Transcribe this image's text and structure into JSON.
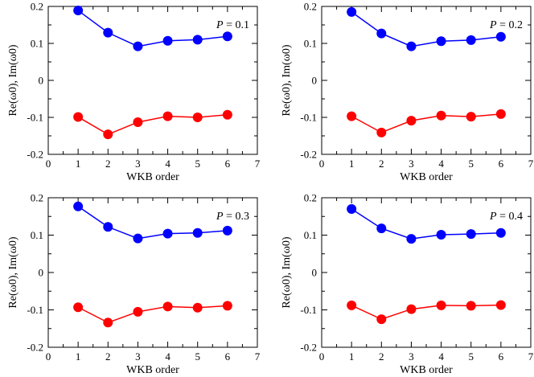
{
  "figure": {
    "description_free": true
  },
  "colors": {
    "series_re": "#0000ff",
    "series_im": "#ff0000",
    "axis": "#000000",
    "background": "#ffffff"
  },
  "chart_data": [
    {
      "type": "line",
      "panel": "top-left",
      "annotation_symbol": "P",
      "annotation_value": "= 0.1",
      "xlabel": "WKB order",
      "ylabel": "Re(ω0), Im(ω0)",
      "xlim": [
        0,
        7
      ],
      "ylim": [
        -0.2,
        0.2
      ],
      "xticks": [
        "0",
        "1",
        "2",
        "3",
        "4",
        "5",
        "6",
        "7"
      ],
      "yticks": [
        "-0.2",
        "-0.1",
        "0",
        "0.1",
        "0.2"
      ],
      "x": [
        1,
        2,
        3,
        4,
        5,
        6
      ],
      "series": [
        {
          "name": "Re(ω0)",
          "color": "#0000ff",
          "values": [
            0.189,
            0.129,
            0.092,
            0.107,
            0.11,
            0.119
          ]
        },
        {
          "name": "Im(ω0)",
          "color": "#ff0000",
          "values": [
            -0.099,
            -0.146,
            -0.113,
            -0.097,
            -0.1,
            -0.093
          ]
        }
      ]
    },
    {
      "type": "line",
      "panel": "top-right",
      "annotation_symbol": "P",
      "annotation_value": "= 0.2",
      "xlabel": "WKB order",
      "ylabel": "Re(ω0), Im(ω0)",
      "xlim": [
        0,
        7
      ],
      "ylim": [
        -0.2,
        0.2
      ],
      "xticks": [
        "0",
        "1",
        "2",
        "3",
        "4",
        "5",
        "6",
        "7"
      ],
      "yticks": [
        "-0.2",
        "-0.1",
        "0",
        "0.1",
        "0.2"
      ],
      "x": [
        1,
        2,
        3,
        4,
        5,
        6
      ],
      "series": [
        {
          "name": "Re(ω0)",
          "color": "#0000ff",
          "values": [
            0.185,
            0.127,
            0.092,
            0.106,
            0.109,
            0.118
          ]
        },
        {
          "name": "Im(ω0)",
          "color": "#ff0000",
          "values": [
            -0.097,
            -0.141,
            -0.109,
            -0.095,
            -0.098,
            -0.091
          ]
        }
      ]
    },
    {
      "type": "line",
      "panel": "bottom-left",
      "annotation_symbol": "P",
      "annotation_value": "= 0.3",
      "xlabel": "WKB order",
      "ylabel": "Re(ω0), Im(ω0)",
      "xlim": [
        0,
        7
      ],
      "ylim": [
        -0.2,
        0.2
      ],
      "xticks": [
        "0",
        "1",
        "2",
        "3",
        "4",
        "5",
        "6",
        "7"
      ],
      "yticks": [
        "-0.2",
        "-0.1",
        "0",
        "0.1",
        "0.2"
      ],
      "x": [
        1,
        2,
        3,
        4,
        5,
        6
      ],
      "series": [
        {
          "name": "Re(ω0)",
          "color": "#0000ff",
          "values": [
            0.177,
            0.122,
            0.091,
            0.104,
            0.106,
            0.112
          ]
        },
        {
          "name": "Im(ω0)",
          "color": "#ff0000",
          "values": [
            -0.093,
            -0.134,
            -0.105,
            -0.091,
            -0.094,
            -0.089
          ]
        }
      ]
    },
    {
      "type": "line",
      "panel": "bottom-right",
      "annotation_symbol": "P",
      "annotation_value": "= 0.4",
      "xlabel": "WKB order",
      "ylabel": "Re(ω0), Im(ω0)",
      "xlim": [
        0,
        7
      ],
      "ylim": [
        -0.2,
        0.2
      ],
      "xticks": [
        "0",
        "1",
        "2",
        "3",
        "4",
        "5",
        "6",
        "7"
      ],
      "yticks": [
        "-0.2",
        "-0.1",
        "0",
        "0.1",
        "0.2"
      ],
      "x": [
        1,
        2,
        3,
        4,
        5,
        6
      ],
      "series": [
        {
          "name": "Re(ω0)",
          "color": "#0000ff",
          "values": [
            0.17,
            0.118,
            0.09,
            0.101,
            0.103,
            0.106
          ]
        },
        {
          "name": "Im(ω0)",
          "color": "#ff0000",
          "values": [
            -0.088,
            -0.125,
            -0.098,
            -0.088,
            -0.089,
            -0.087
          ]
        }
      ]
    }
  ]
}
